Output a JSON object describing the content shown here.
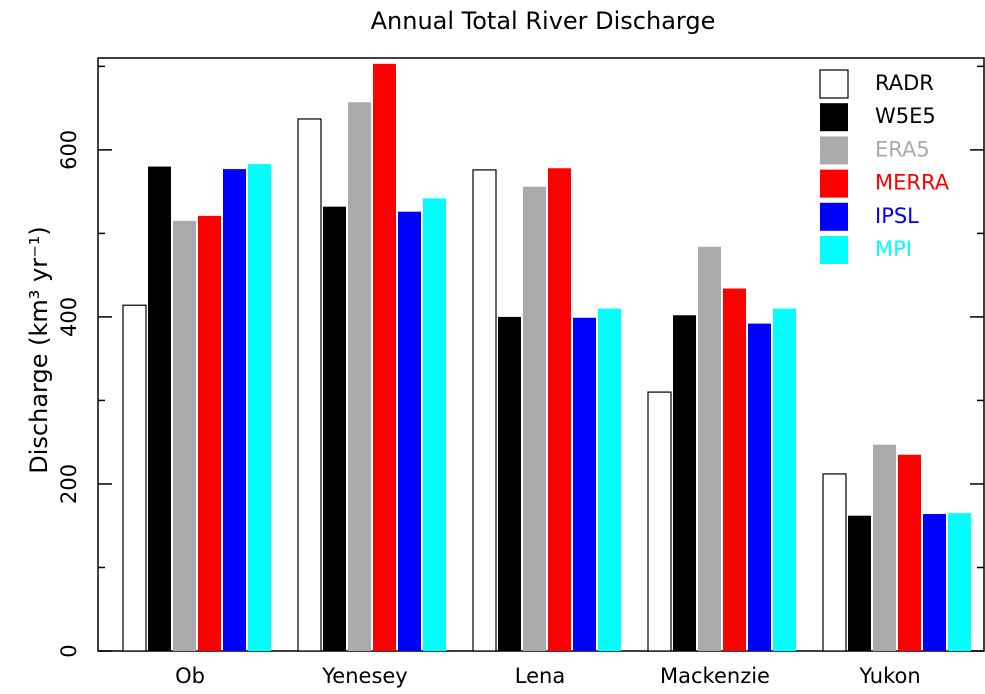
{
  "chart_data": {
    "type": "bar",
    "title": "Annual Total River Discharge",
    "ylabel": "Discharge (km³ yr⁻¹)",
    "categories": [
      "Ob",
      "Yenesey",
      "Lena",
      "Mackenzie",
      "Yukon"
    ],
    "series": [
      {
        "name": "RADR",
        "color": "#ffffff",
        "values": [
          414,
          637,
          576,
          310,
          212
        ]
      },
      {
        "name": "W5E5",
        "color": "#000000",
        "values": [
          580,
          532,
          400,
          402,
          162
        ]
      },
      {
        "name": "ERA5",
        "color": "#aaaaaa",
        "values": [
          515,
          657,
          556,
          484,
          247
        ]
      },
      {
        "name": "MERRA",
        "color": "#ff0000",
        "values": [
          521,
          703,
          578,
          434,
          235
        ]
      },
      {
        "name": "IPSL",
        "color": "#0000ff",
        "values": [
          577,
          526,
          399,
          392,
          164
        ]
      },
      {
        "name": "MPI",
        "color": "#00ffff",
        "values": [
          583,
          542,
          410,
          410,
          165
        ]
      }
    ],
    "ylim": [
      0,
      710
    ],
    "yticks": [
      0,
      200,
      400,
      600
    ],
    "minor_yticks": [
      100,
      300,
      500,
      700
    ],
    "legend": "upper right"
  }
}
